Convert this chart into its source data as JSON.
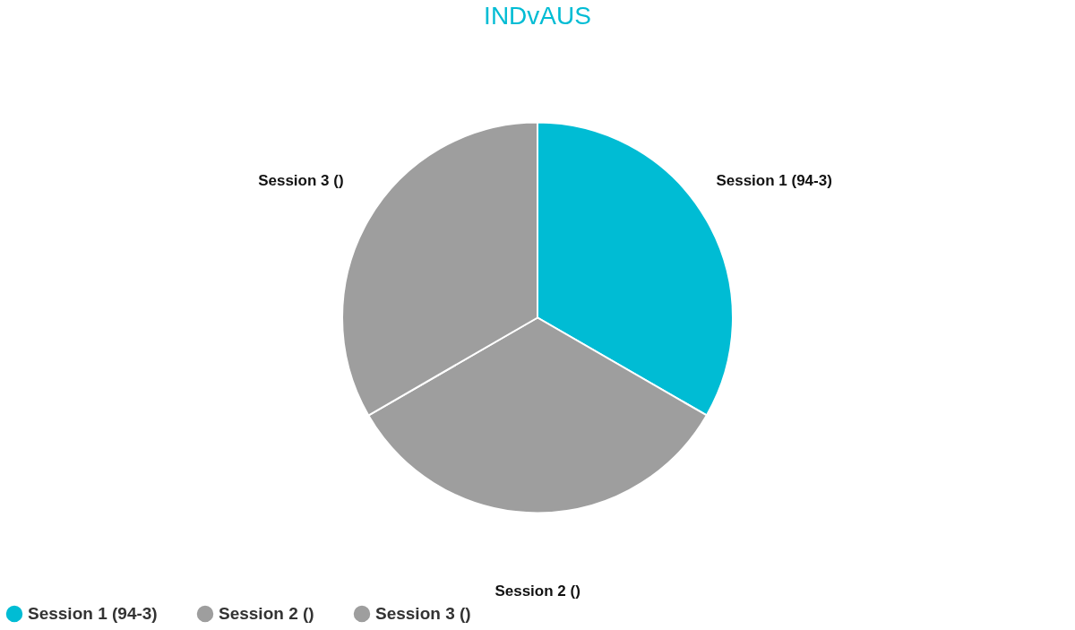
{
  "chart_data": {
    "type": "pie",
    "title": "INDvAUS",
    "categories": [
      "Session 1 (94-3)",
      "Session 2 ()",
      "Session 3 ()"
    ],
    "values": [
      33.33,
      33.33,
      33.34
    ],
    "colors": [
      "#00bcd4",
      "#9e9e9e",
      "#9e9e9e"
    ],
    "legend": "bottom"
  }
}
